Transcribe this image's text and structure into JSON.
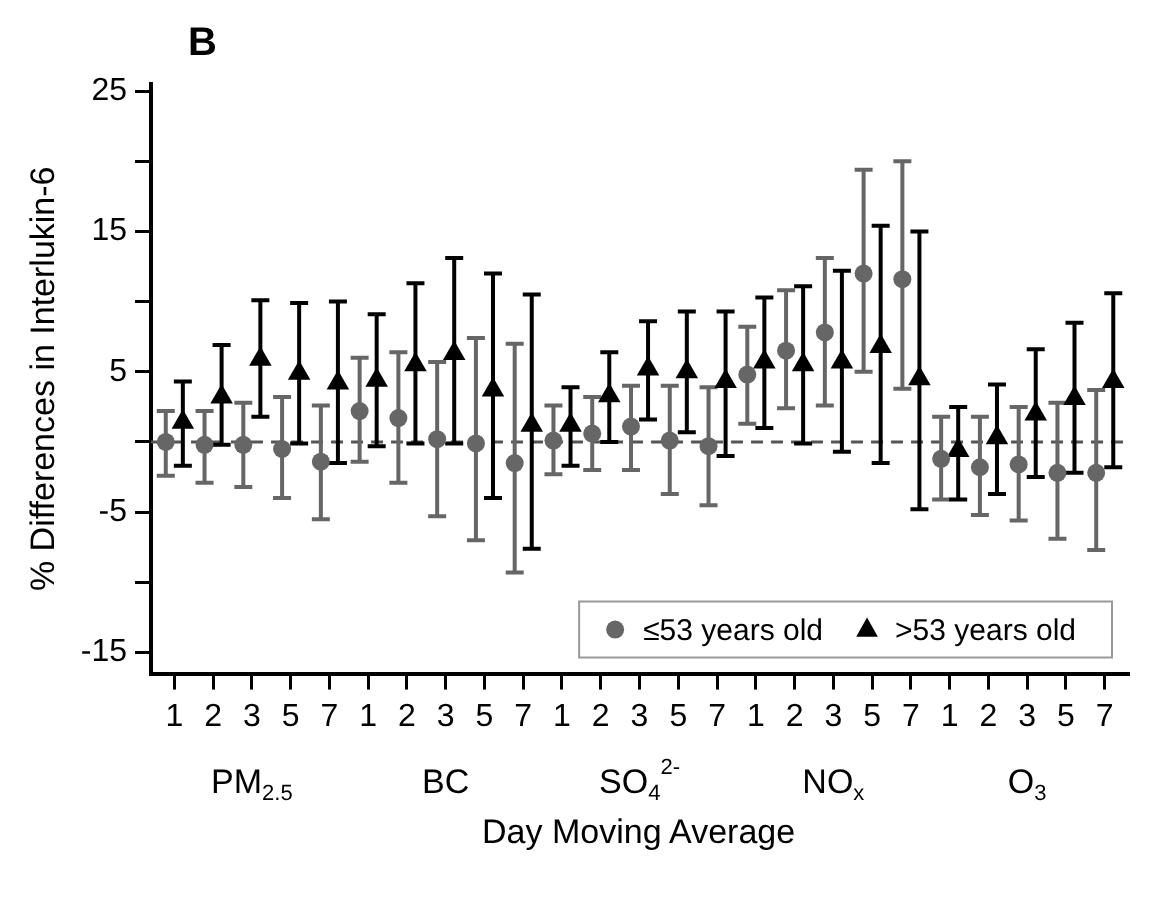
{
  "chart_data": {
    "type": "scatter",
    "title": "B",
    "xlabel": "Day Moving Average",
    "ylabel": "% Differences in Interlukin-6",
    "categories": [
      "1",
      "2",
      "3",
      "5",
      "7",
      "1",
      "2",
      "3",
      "5",
      "7",
      "1",
      "2",
      "3",
      "5",
      "7",
      "1",
      "2",
      "3",
      "5",
      "7",
      "1",
      "2",
      "3",
      "5",
      "7"
    ],
    "annotations": [
      "PM$_{2.5}$",
      "BC",
      "SO$_{4}$$^{2-}$",
      "NO$_{x}$",
      "O$_{3}$"
    ],
    "series": [
      {
        "name": "≤53 years old",
        "color": "#666666",
        "marker": "circle",
        "values": [
          0,
          -0.2,
          -0.2,
          -0.5,
          -1.4,
          2.2,
          1.7,
          0.2,
          -0.1,
          -1.5,
          0.1,
          0.6,
          1.1,
          0.1,
          -0.3,
          4.8,
          6.5,
          7.8,
          12.0,
          11.6,
          -1.2,
          -1.8,
          -1.6,
          -2.2,
          -2.2
        ],
        "errors": [
          [
            -2.4,
            2.2
          ],
          [
            -2.9,
            2.2
          ],
          [
            -3.2,
            2.8
          ],
          [
            -4.0,
            3.2
          ],
          [
            -5.5,
            2.6
          ],
          [
            -1.4,
            6.0
          ],
          [
            -2.9,
            6.4
          ],
          [
            -5.3,
            5.7
          ],
          [
            -7.0,
            7.4
          ],
          [
            -9.3,
            7.0
          ],
          [
            -2.3,
            2.6
          ],
          [
            -2.0,
            3.2
          ],
          [
            -2.0,
            4.0
          ],
          [
            -3.7,
            4.0
          ],
          [
            -4.5,
            3.9
          ],
          [
            1.3,
            8.2
          ],
          [
            2.4,
            10.8
          ],
          [
            2.6,
            13.1
          ],
          [
            5.0,
            19.4
          ],
          [
            3.8,
            20.0
          ],
          [
            -4.1,
            1.8
          ],
          [
            -5.2,
            1.8
          ],
          [
            -5.6,
            2.5
          ],
          [
            -6.9,
            2.8
          ],
          [
            -7.7,
            3.7
          ]
        ]
      },
      {
        "name": ">53 years old",
        "color": "#000000",
        "marker": "triangle",
        "values": [
          1.4,
          3.2,
          5.9,
          4.9,
          4.2,
          4.4,
          5.5,
          6.3,
          3.7,
          1.2,
          1.2,
          3.3,
          5.2,
          5.0,
          4.3,
          5.7,
          5.5,
          5.7,
          6.8,
          4.5,
          -0.6,
          0.3,
          2.0,
          3.1,
          4.3
        ],
        "errors": [
          [
            -1.7,
            4.3
          ],
          [
            -0.2,
            6.9
          ],
          [
            1.8,
            10.1
          ],
          [
            -0.1,
            9.9
          ],
          [
            -1.5,
            10.0
          ],
          [
            -0.3,
            9.1
          ],
          [
            -0.1,
            11.3
          ],
          [
            -0.1,
            13.1
          ],
          [
            -4.0,
            12.0
          ],
          [
            -7.6,
            10.5
          ],
          [
            -1.7,
            3.9
          ],
          [
            0,
            6.4
          ],
          [
            1.6,
            8.6
          ],
          [
            0.7,
            9.3
          ],
          [
            -1.0,
            9.3
          ],
          [
            1.0,
            10.3
          ],
          [
            -0.1,
            11.1
          ],
          [
            -0.7,
            12.2
          ],
          [
            -1.5,
            15.4
          ],
          [
            -4.8,
            15.0
          ],
          [
            -4.1,
            2.5
          ],
          [
            -3.7,
            4.1
          ],
          [
            -2.5,
            6.6
          ],
          [
            -2.2,
            8.5
          ],
          [
            -1.8,
            10.6
          ]
        ]
      }
    ],
    "ylim": [
      -16.5,
      25.5
    ],
    "yticks": [
      25,
      {
        "value": 20,
        "label": null
      },
      15,
      {
        "value": 10,
        "label": null
      },
      5,
      {
        "value": 0,
        "label": null
      },
      -5,
      {
        "value": -10,
        "label": null
      },
      -15
    ],
    "ref_lines": [
      {
        "axis": "y",
        "value": 0,
        "color": "#555555",
        "line_style": "dashed"
      }
    ],
    "grid": false,
    "legend": "bottom right"
  }
}
